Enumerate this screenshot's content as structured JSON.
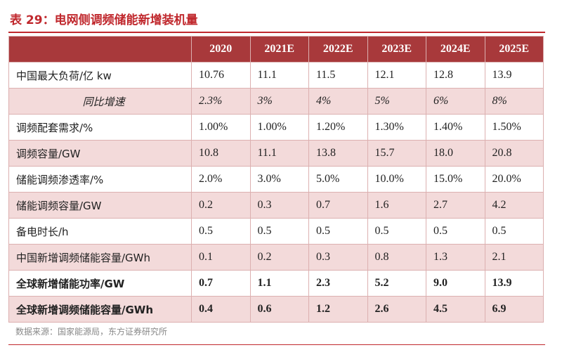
{
  "title": "表 29：电网侧调频储能新增装机量",
  "table": {
    "header": [
      "2020",
      "2021E",
      "2022E",
      "2023E",
      "2024E",
      "2025E"
    ],
    "rows": [
      [
        "中国最大负荷/亿 kw",
        "10.76",
        "11.1",
        "11.5",
        "12.1",
        "12.8",
        "13.9"
      ],
      [
        "同比增速",
        "2.3%",
        "3%",
        "4%",
        "5%",
        "6%",
        "8%"
      ],
      [
        "调频配套需求/%",
        "1.00%",
        "1.00%",
        "1.20%",
        "1.30%",
        "1.40%",
        "1.50%"
      ],
      [
        "调频容量/GW",
        "10.8",
        "11.1",
        "13.8",
        "15.7",
        "18.0",
        "20.8"
      ],
      [
        "储能调频渗透率/%",
        "2.0%",
        "3.0%",
        "5.0%",
        "10.0%",
        "15.0%",
        "20.0%"
      ],
      [
        "储能调频容量/GW",
        "0.2",
        "0.3",
        "0.7",
        "1.6",
        "2.7",
        "4.2"
      ],
      [
        "备电时长/h",
        "0.5",
        "0.5",
        "0.5",
        "0.5",
        "0.5",
        "0.5"
      ],
      [
        "中国新增调频储能容量/GWh",
        "0.1",
        "0.2",
        "0.3",
        "0.8",
        "1.3",
        "2.1"
      ],
      [
        "全球新增储能功率/GW",
        "0.7",
        "1.1",
        "2.3",
        "5.2",
        "9.0",
        "13.9"
      ],
      [
        "全球新增调频储能容量/GWh",
        "0.4",
        "0.6",
        "1.2",
        "2.6",
        "4.5",
        "6.9"
      ]
    ]
  },
  "source": "数据来源：国家能源局，东方证券研究所"
}
